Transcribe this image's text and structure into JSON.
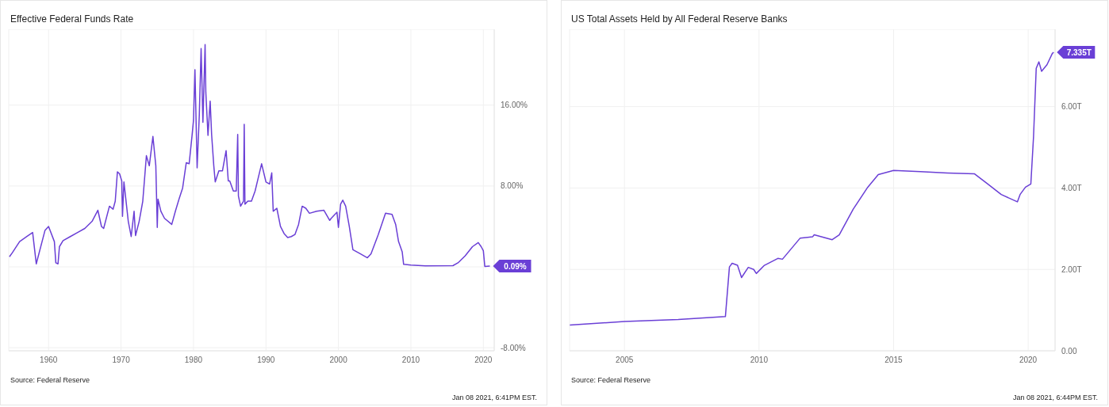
{
  "chart_data": [
    {
      "type": "line",
      "title": "Effective Federal Funds Rate",
      "color": "#6a3fd6",
      "marker": "none",
      "grid": true,
      "x": [
        1954.6,
        1955,
        1956,
        1957,
        1957.8,
        1958.3,
        1959.5,
        1960,
        1960.8,
        1961,
        1961.3,
        1961.5,
        1962,
        1963,
        1964,
        1965,
        1966,
        1966.8,
        1967.3,
        1967.6,
        1968.4,
        1968.9,
        1969.2,
        1969.5,
        1969.8,
        1970.1,
        1970.2,
        1970.4,
        1971,
        1971.4,
        1971.8,
        1972,
        1972.5,
        1973,
        1973.5,
        1973.9,
        1974.4,
        1974.8,
        1975,
        1975.1,
        1975.5,
        1976,
        1977,
        1977.5,
        1978,
        1978.5,
        1979,
        1979.4,
        1979.8,
        1980,
        1980.2,
        1980.5,
        1980.8,
        1981.05,
        1981.3,
        1981.6,
        1981.7,
        1982,
        1982.3,
        1982.5,
        1982.8,
        1983,
        1983.5,
        1984,
        1984.5,
        1984.8,
        1985,
        1985.5,
        1985.9,
        1986.1,
        1986.2,
        1986.5,
        1986.9,
        1987,
        1987.1,
        1987.5,
        1988,
        1988.5,
        1989,
        1989.4,
        1990,
        1990.5,
        1990.8,
        1991,
        1991.5,
        1992,
        1992.5,
        1993,
        1993.5,
        1994,
        1994.5,
        1995,
        1995.5,
        1996,
        1997,
        1998,
        1998.8,
        1999,
        1999.8,
        2000,
        2000.3,
        2000.6,
        2001,
        2001.5,
        2002,
        2003,
        2004,
        2004.5,
        2005.5,
        2006.5,
        2007.4,
        2007.9,
        2008.3,
        2008.8,
        2009,
        2010,
        2012,
        2015.8,
        2016.5,
        2017.5,
        2018.5,
        2019.3,
        2019.7,
        2020,
        2020.2,
        2020.9
      ],
      "values": [
        1.0,
        1.4,
        2.5,
        3.0,
        3.4,
        0.3,
        3.6,
        4.0,
        2.5,
        0.4,
        0.3,
        2.0,
        2.6,
        3.0,
        3.4,
        3.8,
        4.5,
        5.6,
        4.0,
        3.8,
        6.0,
        5.7,
        6.5,
        9.4,
        9.2,
        8.5,
        5.0,
        8.4,
        4.5,
        3.0,
        5.5,
        3.1,
        4.5,
        6.5,
        11.0,
        10.0,
        12.9,
        10.0,
        3.9,
        6.7,
        5.5,
        4.8,
        4.2,
        5.5,
        6.7,
        7.8,
        10.3,
        10.2,
        13.0,
        14.5,
        19.5,
        9.8,
        15.0,
        21.6,
        14.3,
        22.0,
        17.3,
        13.0,
        16.4,
        13.1,
        10.0,
        8.4,
        9.5,
        9.5,
        11.5,
        8.5,
        8.5,
        7.5,
        7.5,
        13.1,
        7.0,
        6.0,
        6.5,
        14.1,
        6.2,
        6.5,
        6.5,
        7.5,
        9.0,
        10.2,
        8.4,
        8.2,
        9.3,
        5.5,
        5.8,
        4.0,
        3.3,
        2.9,
        3.0,
        3.2,
        4.2,
        6.0,
        5.8,
        5.3,
        5.5,
        5.6,
        4.6,
        4.8,
        5.4,
        3.9,
        6.2,
        6.6,
        6.0,
        4.0,
        1.7,
        1.3,
        0.9,
        1.3,
        3.2,
        5.3,
        5.2,
        4.2,
        2.5,
        1.5,
        0.25,
        0.18,
        0.1,
        0.12,
        0.4,
        1.1,
        2.0,
        2.4,
        2.0,
        1.6,
        0.05,
        0.09
      ],
      "xlim": [
        1954.5,
        2021.5
      ],
      "xticks": [
        1960,
        1970,
        1980,
        1990,
        2000,
        2010,
        2020
      ],
      "ylim": [
        -8.3,
        23.5
      ],
      "yticks": [
        {
          "value": -8,
          "label": "-8.00%"
        },
        {
          "value": 0,
          "label": null
        },
        {
          "value": 8,
          "label": "8.00%"
        },
        {
          "value": 16,
          "label": "16.00%"
        }
      ],
      "annotations": [
        {
          "text": "0.09%",
          "x": 2020.9,
          "y": 0.09
        },
        "Source: Federal Reserve",
        "Jan 08 2021, 6:41PM EST."
      ]
    },
    {
      "type": "line",
      "title": "US Total Assets Held by All Federal Reserve Banks",
      "color": "#6a3fd6",
      "marker": "none",
      "grid": true,
      "x": [
        2002.97,
        2005,
        2007,
        2008.75,
        2008.9,
        2009.0,
        2009.2,
        2009.35,
        2009.6,
        2009.8,
        2009.9,
        2010.2,
        2010.7,
        2010.87,
        2011.53,
        2011.99,
        2012.05,
        2012.72,
        2012.98,
        2013.5,
        2014.04,
        2014.43,
        2015.0,
        2016,
        2017,
        2018,
        2018.5,
        2019,
        2019.6,
        2019.7,
        2019.9,
        2020.1,
        2020.2,
        2020.3,
        2020.4,
        2020.5,
        2020.7,
        2020.9,
        2020.95
      ],
      "values": [
        0.63,
        0.72,
        0.77,
        0.84,
        2.06,
        2.15,
        2.1,
        1.8,
        2.05,
        2.0,
        1.9,
        2.1,
        2.27,
        2.25,
        2.77,
        2.8,
        2.85,
        2.73,
        2.85,
        3.48,
        4.02,
        4.33,
        4.43,
        4.4,
        4.37,
        4.35,
        4.1,
        3.84,
        3.66,
        3.84,
        4.02,
        4.1,
        5.26,
        6.94,
        7.1,
        6.87,
        7.03,
        7.31,
        7.335
      ],
      "xlim": [
        2002.96,
        2021.0
      ],
      "xticks": [
        2005,
        2010,
        2015,
        2020
      ],
      "ylim": [
        0,
        7.9
      ],
      "yticks": [
        {
          "value": 0,
          "label": "0.00"
        },
        {
          "value": 2,
          "label": "2.00T"
        },
        {
          "value": 4,
          "label": "4.00T"
        },
        {
          "value": 6,
          "label": "6.00T"
        }
      ],
      "annotations": [
        {
          "text": "7.335T",
          "x": 2020.95,
          "y": 7.335
        },
        "Source: Federal Reserve",
        "Jan 08 2021, 6:44PM EST."
      ]
    }
  ]
}
